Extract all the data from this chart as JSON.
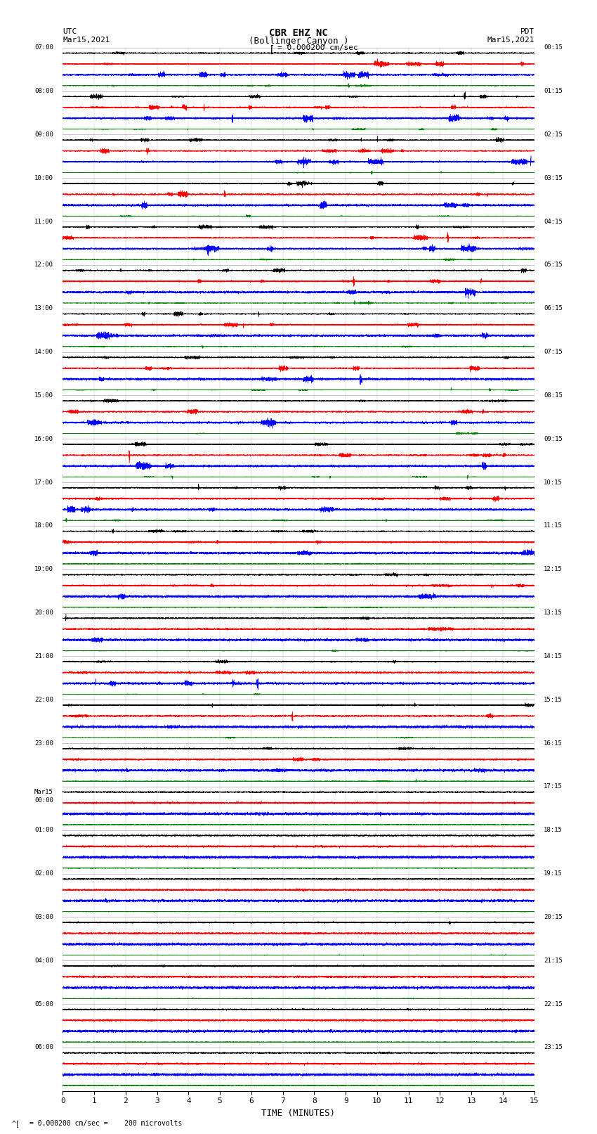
{
  "title_line1": "CBR EHZ NC",
  "title_line2": "(Bollinger Canyon )",
  "scale_label": "= 0.000200 cm/sec",
  "bottom_label": "= 0.000200 cm/sec =    200 microvolts",
  "xlabel": "TIME (MINUTES)",
  "left_header_line1": "UTC",
  "left_header_line2": "Mar15,2021",
  "right_header_line1": "PDT",
  "right_header_line2": "Mar15,2021",
  "colors": [
    "black",
    "red",
    "blue",
    "green"
  ],
  "num_rows": 24,
  "traces_per_row": 4,
  "xlim": [
    0,
    15
  ],
  "bg_color": "white",
  "left_times_utc": [
    "07:00",
    "08:00",
    "09:00",
    "10:00",
    "11:00",
    "12:00",
    "13:00",
    "14:00",
    "15:00",
    "16:00",
    "17:00",
    "18:00",
    "19:00",
    "20:00",
    "21:00",
    "22:00",
    "23:00",
    "Mar15\n00:00",
    "01:00",
    "02:00",
    "03:00",
    "04:00",
    "05:00",
    "06:00"
  ],
  "right_times_pdt": [
    "00:15",
    "01:15",
    "02:15",
    "03:15",
    "04:15",
    "05:15",
    "06:15",
    "07:15",
    "08:15",
    "09:15",
    "10:15",
    "11:15",
    "12:15",
    "13:15",
    "14:15",
    "15:15",
    "16:15",
    "17:15",
    "18:15",
    "19:15",
    "20:15",
    "21:15",
    "22:15",
    "23:15"
  ],
  "noise_seed": 42,
  "n_samples": 9000,
  "activity_early": 0.6,
  "activity_mid": 0.35,
  "activity_late": 0.15,
  "base_noise": 0.08,
  "trace_amplitude": 0.38
}
